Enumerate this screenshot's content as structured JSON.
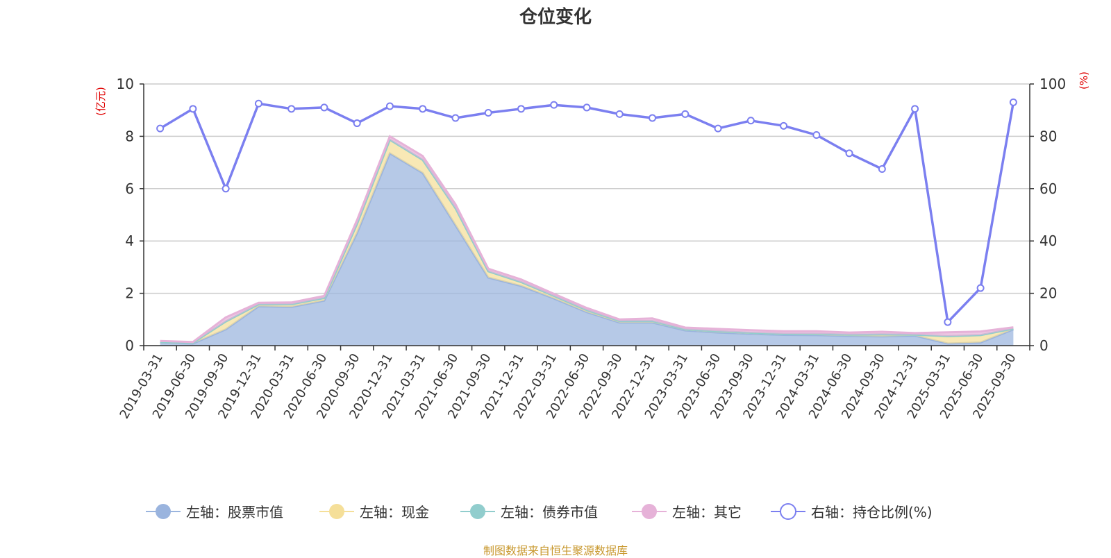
{
  "chart_data": {
    "type": "area",
    "title": "仓位变化",
    "ylabel_left": "(亿元)",
    "ylabel_right": "(%)",
    "ylim_left": [
      0,
      10
    ],
    "ylim_right": [
      0,
      100
    ],
    "yticks_left": [
      "0",
      "2",
      "4",
      "6",
      "8",
      "10"
    ],
    "yticks_right": [
      "0",
      "20",
      "40",
      "60",
      "80",
      "100"
    ],
    "categories": [
      "2019-03-31",
      "2019-06-30",
      "2019-09-30",
      "2019-12-31",
      "2020-03-31",
      "2020-06-30",
      "2020-09-30",
      "2020-12-31",
      "2021-03-31",
      "2021-06-30",
      "2021-09-30",
      "2021-12-31",
      "2022-03-31",
      "2022-06-30",
      "2022-09-30",
      "2022-12-31",
      "2023-03-31",
      "2023-06-30",
      "2023-09-30",
      "2023-12-31",
      "2024-03-31",
      "2024-06-30",
      "2024-09-30",
      "2024-12-31",
      "2025-03-31",
      "2025-06-30",
      "2025-09-30"
    ],
    "series": [
      {
        "name": "左轴：股票市值",
        "axis": "left",
        "kind": "stacked-area",
        "color": "#9ab4de",
        "values": [
          0.12,
          0.08,
          0.62,
          1.5,
          1.48,
          1.72,
          4.3,
          7.35,
          6.6,
          4.6,
          2.6,
          2.28,
          1.8,
          1.28,
          0.88,
          0.88,
          0.58,
          0.5,
          0.45,
          0.41,
          0.4,
          0.37,
          0.35,
          0.38,
          0.08,
          0.12,
          0.62
        ]
      },
      {
        "name": "左轴：现金",
        "axis": "left",
        "kind": "stacked-area",
        "color": "#f5df99",
        "values": [
          0.02,
          0.03,
          0.3,
          0.08,
          0.1,
          0.1,
          0.35,
          0.52,
          0.5,
          0.65,
          0.24,
          0.15,
          0.1,
          0.08,
          0.06,
          0.06,
          0.04,
          0.05,
          0.04,
          0.04,
          0.05,
          0.05,
          0.08,
          0.04,
          0.28,
          0.28,
          0.03
        ]
      },
      {
        "name": "左轴：债券市值",
        "axis": "left",
        "kind": "stacked-area",
        "color": "#91cdcd",
        "values": [
          0,
          0,
          0,
          0,
          0,
          0,
          0,
          0,
          0,
          0,
          0,
          0,
          0,
          0,
          0,
          0,
          0,
          0,
          0,
          0,
          0,
          0,
          0,
          0,
          0,
          0,
          0
        ]
      },
      {
        "name": "左轴：其它",
        "axis": "left",
        "kind": "stacked-area",
        "color": "#e6b2d8",
        "values": [
          0.04,
          0.03,
          0.16,
          0.06,
          0.07,
          0.08,
          0.15,
          0.13,
          0.15,
          0.15,
          0.1,
          0.1,
          0.08,
          0.08,
          0.06,
          0.1,
          0.07,
          0.09,
          0.1,
          0.1,
          0.1,
          0.08,
          0.1,
          0.06,
          0.15,
          0.14,
          0.05
        ]
      },
      {
        "name": "右轴：持仓比例(%)",
        "axis": "right",
        "kind": "line",
        "color": "#7b7ff0",
        "values": [
          83,
          90.5,
          60,
          92.5,
          90.5,
          91,
          85,
          91.5,
          90.5,
          87,
          89,
          90.5,
          92,
          91,
          88.5,
          87,
          88.5,
          83,
          86,
          84,
          80.5,
          73.5,
          67.5,
          90.5,
          9,
          22,
          93
        ]
      }
    ]
  },
  "footer": {
    "source": "制图数据来自恒生聚源数据库"
  }
}
